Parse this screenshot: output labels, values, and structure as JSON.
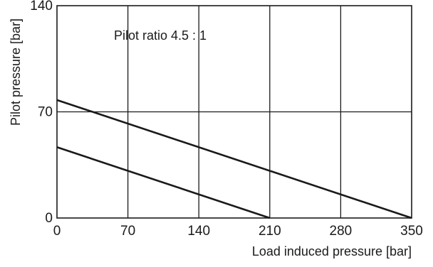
{
  "chart_data": {
    "type": "line",
    "xlabel": "Load induced pressure [bar]",
    "ylabel": "Pilot pressure [bar]",
    "annotation": "Pilot ratio 4.5 : 1",
    "xlim": [
      0,
      350
    ],
    "ylim": [
      0,
      140
    ],
    "xticks": [
      0,
      70,
      140,
      210,
      280,
      350
    ],
    "yticks": [
      0,
      70,
      140
    ],
    "grid": {
      "x": [
        70,
        140,
        210,
        280
      ],
      "y": [
        70
      ]
    },
    "series": [
      {
        "x": [
          0,
          350
        ],
        "y": [
          77.8,
          0
        ]
      },
      {
        "x": [
          0,
          210
        ],
        "y": [
          46.7,
          0
        ]
      }
    ]
  }
}
